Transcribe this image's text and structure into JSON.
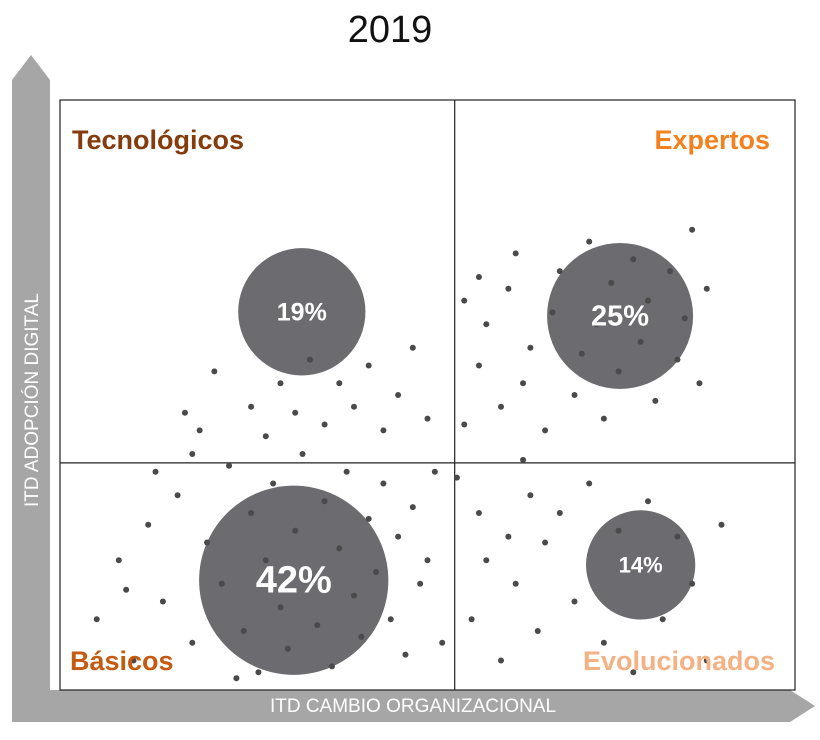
{
  "chart_data": {
    "type": "scatter",
    "title": "2019",
    "x_label": "ITD CAMBIO ORGANIZACIONAL",
    "y_label": "ITD ADOPCIÓN DIGITAL",
    "xlim": [
      0,
      100
    ],
    "ylim": [
      0,
      100
    ],
    "quadrant_lines": {
      "x": 53.7,
      "y": 38.5
    },
    "quadrant_labels": [
      {
        "text": "Tecnológicos",
        "color": "#843c0c",
        "corner": "top-left"
      },
      {
        "text": "Expertos",
        "color": "#f4811f",
        "corner": "top-right"
      },
      {
        "text": "Básicos",
        "color": "#c55a11",
        "corner": "bottom-left"
      },
      {
        "text": "Evolucionados",
        "color": "#f4b183",
        "corner": "bottom-right"
      }
    ],
    "bubbles": {
      "color": "#6b6b70",
      "x": [
        32.9,
        76.2,
        31.8,
        79.0
      ],
      "y": [
        64.1,
        63.4,
        18.6,
        21.2
      ],
      "size": [
        19,
        25,
        42,
        14
      ],
      "value_labels": [
        "19%",
        "25%",
        "42%",
        "14%"
      ]
    },
    "points": {
      "color": "#4a4a4a",
      "x": [
        5,
        8,
        10,
        12,
        14,
        16,
        18,
        20,
        22,
        23,
        25,
        26,
        27,
        28,
        29,
        30,
        31,
        32,
        33,
        34,
        35,
        36,
        37,
        38,
        39,
        40,
        41,
        42,
        43,
        44,
        45,
        46,
        47,
        48,
        49,
        50,
        51,
        52,
        24,
        18,
        13,
        9,
        36,
        38,
        40,
        42,
        44,
        46,
        48,
        50,
        26,
        28,
        30,
        32,
        34,
        21,
        17,
        19,
        55,
        57,
        58,
        60,
        61,
        63,
        64,
        66,
        67,
        68,
        70,
        71,
        72,
        73,
        74,
        75,
        76,
        78,
        79,
        80,
        81,
        83,
        84,
        85,
        86,
        87,
        88,
        57,
        55,
        62,
        56,
        57,
        58,
        60,
        61,
        62,
        64,
        65,
        66,
        68,
        70,
        72,
        74,
        76,
        78,
        80,
        82,
        84,
        86,
        88,
        90,
        54,
        63
      ],
      "y": [
        12,
        22,
        5,
        28,
        15,
        33,
        8,
        25,
        18,
        38,
        10,
        30,
        3,
        22,
        35,
        14,
        7,
        27,
        40,
        19,
        11,
        32,
        4,
        24,
        37,
        16,
        9,
        29,
        20,
        35,
        12,
        26,
        6,
        31,
        18,
        22,
        37,
        8,
        2,
        40,
        37,
        17,
        45,
        52,
        48,
        55,
        44,
        50,
        58,
        46,
        48,
        43,
        52,
        47,
        56,
        54,
        47,
        44,
        45,
        55,
        62,
        48,
        68,
        52,
        58,
        44,
        64,
        71,
        50,
        57,
        76,
        62,
        46,
        69,
        54,
        73,
        59,
        66,
        49,
        71,
        56,
        63,
        78,
        52,
        68,
        70,
        66,
        74,
        12,
        30,
        22,
        5,
        26,
        18,
        33,
        10,
        25,
        30,
        15,
        35,
        8,
        27,
        3,
        32,
        12,
        26,
        18,
        5,
        28,
        36,
        39
      ]
    }
  }
}
